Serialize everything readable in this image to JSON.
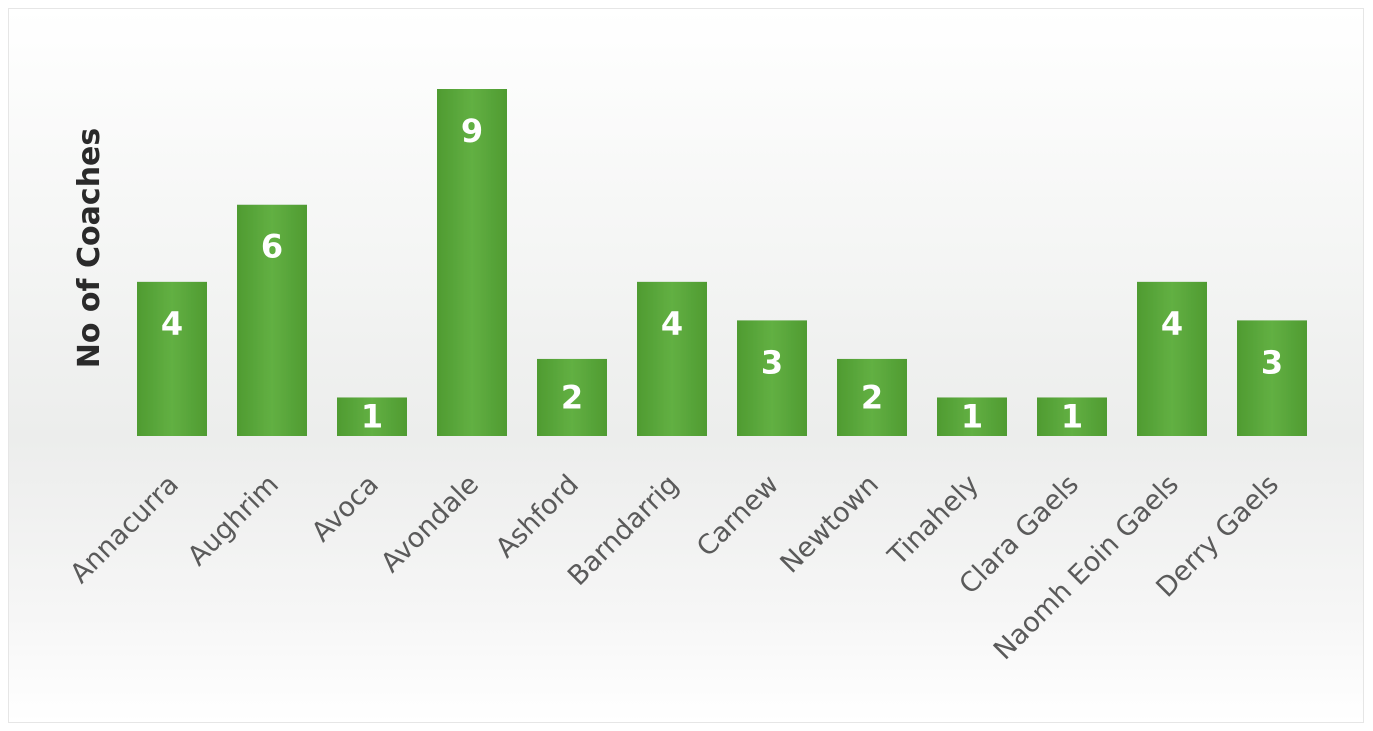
{
  "chart_data": {
    "type": "bar",
    "title": "",
    "xlabel": "",
    "ylabel": "No of Coaches",
    "categories": [
      "Annacurra",
      "Aughrim",
      "Avoca",
      "Avondale",
      "Ashford",
      "Barndarrig",
      "Carnew",
      "Newtown",
      "Tinahely",
      "Clara Gaels",
      "Naomh Eoin Gaels",
      "Derry Gaels"
    ],
    "values": [
      4,
      6,
      1,
      9,
      2,
      4,
      3,
      2,
      1,
      1,
      4,
      3
    ],
    "ylim": [
      0,
      9
    ],
    "grid": false,
    "legend": "none",
    "data_labels": true,
    "bar_color": "#5aa83a"
  }
}
